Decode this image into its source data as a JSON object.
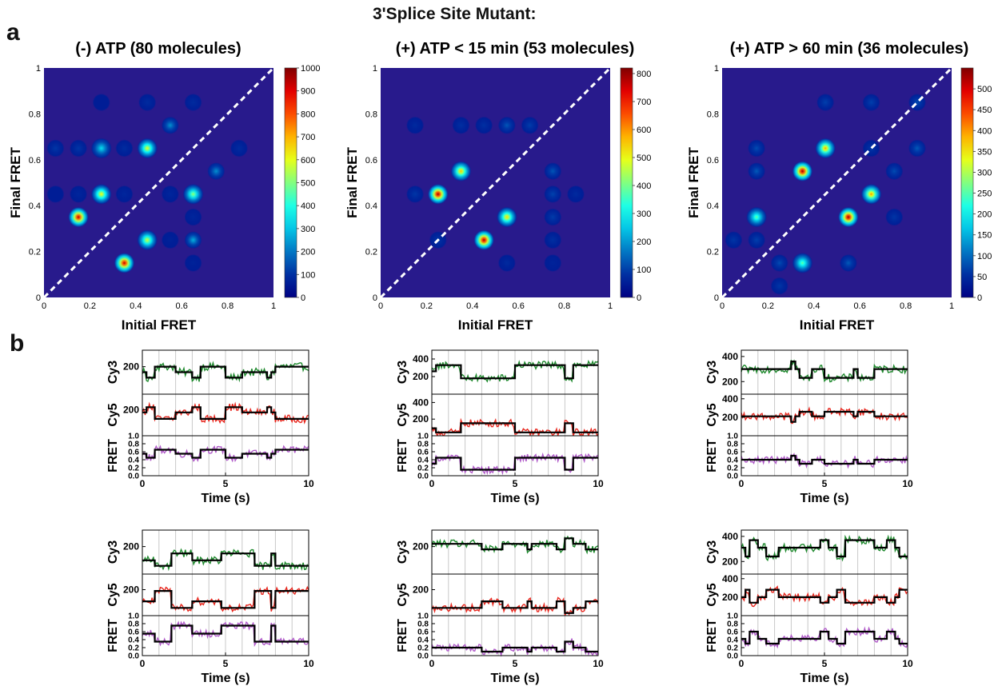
{
  "figure_title": "3'Splice Site  Mutant:",
  "panel_labels": {
    "a": "a",
    "b": "b"
  },
  "chart_data": [
    {
      "type": "heatmap",
      "title": "(-) ATP (80 molecules)",
      "xlabel": "Initial FRET",
      "ylabel": "Final FRET",
      "xlim": [
        0,
        1
      ],
      "ylim": [
        0,
        1
      ],
      "x_ticks": [
        "0",
        "0.2",
        "0.4",
        "0.6",
        "0.8",
        "1"
      ],
      "y_ticks": [
        "0",
        "0.2",
        "0.4",
        "0.6",
        "0.8",
        "1"
      ],
      "colorbar": {
        "min": 0,
        "max": 1000,
        "ticks": [
          "0",
          "100",
          "200",
          "300",
          "400",
          "500",
          "600",
          "700",
          "800",
          "900",
          "1000"
        ]
      },
      "diagonal_line": true,
      "peaks": [
        {
          "x": 0.15,
          "y": 0.35,
          "value": 950
        },
        {
          "x": 0.35,
          "y": 0.15,
          "value": 950
        },
        {
          "x": 0.25,
          "y": 0.45,
          "value": 620
        },
        {
          "x": 0.45,
          "y": 0.65,
          "value": 600
        },
        {
          "x": 0.45,
          "y": 0.25,
          "value": 580
        },
        {
          "x": 0.65,
          "y": 0.45,
          "value": 520
        },
        {
          "x": 0.25,
          "y": 0.65,
          "value": 330
        },
        {
          "x": 0.65,
          "y": 0.25,
          "value": 270
        },
        {
          "x": 0.55,
          "y": 0.75,
          "value": 230
        },
        {
          "x": 0.75,
          "y": 0.55,
          "value": 230
        },
        {
          "x": 0.05,
          "y": 0.65,
          "value": 110
        },
        {
          "x": 0.15,
          "y": 0.65,
          "value": 110
        },
        {
          "x": 0.35,
          "y": 0.65,
          "value": 90
        },
        {
          "x": 0.45,
          "y": 0.85,
          "value": 90
        },
        {
          "x": 0.65,
          "y": 0.85,
          "value": 90
        },
        {
          "x": 0.85,
          "y": 0.65,
          "value": 90
        },
        {
          "x": 0.35,
          "y": 0.45,
          "value": 80
        },
        {
          "x": 0.55,
          "y": 0.45,
          "value": 80
        },
        {
          "x": 0.15,
          "y": 0.45,
          "value": 80
        },
        {
          "x": 0.65,
          "y": 0.35,
          "value": 80
        },
        {
          "x": 0.65,
          "y": 0.15,
          "value": 70
        },
        {
          "x": 0.25,
          "y": 0.85,
          "value": 60
        },
        {
          "x": 0.55,
          "y": 0.25,
          "value": 70
        },
        {
          "x": 0.05,
          "y": 0.45,
          "value": 60
        }
      ]
    },
    {
      "type": "heatmap",
      "title": "(+) ATP < 15 min (53 molecules)",
      "xlabel": "Initial FRET",
      "ylabel": "Final FRET",
      "xlim": [
        0,
        1
      ],
      "ylim": [
        0,
        1
      ],
      "x_ticks": [
        "0",
        "0.2",
        "0.4",
        "0.6",
        "0.8",
        "1"
      ],
      "y_ticks": [
        "0",
        "0.2",
        "0.4",
        "0.6",
        "0.8",
        "1"
      ],
      "colorbar": {
        "min": 0,
        "max": 820,
        "ticks": [
          "0",
          "100",
          "200",
          "300",
          "400",
          "500",
          "600",
          "700",
          "800"
        ]
      },
      "diagonal_line": true,
      "peaks": [
        {
          "x": 0.25,
          "y": 0.45,
          "value": 800
        },
        {
          "x": 0.45,
          "y": 0.25,
          "value": 800
        },
        {
          "x": 0.35,
          "y": 0.55,
          "value": 560
        },
        {
          "x": 0.55,
          "y": 0.35,
          "value": 540
        },
        {
          "x": 0.55,
          "y": 0.75,
          "value": 130
        },
        {
          "x": 0.75,
          "y": 0.55,
          "value": 130
        },
        {
          "x": 0.75,
          "y": 0.45,
          "value": 110
        },
        {
          "x": 0.75,
          "y": 0.35,
          "value": 100
        },
        {
          "x": 0.65,
          "y": 0.75,
          "value": 100
        },
        {
          "x": 0.15,
          "y": 0.45,
          "value": 90
        },
        {
          "x": 0.25,
          "y": 0.25,
          "value": 90
        },
        {
          "x": 0.45,
          "y": 0.75,
          "value": 80
        },
        {
          "x": 0.35,
          "y": 0.75,
          "value": 80
        },
        {
          "x": 0.75,
          "y": 0.25,
          "value": 80
        },
        {
          "x": 0.15,
          "y": 0.75,
          "value": 70
        },
        {
          "x": 0.85,
          "y": 0.45,
          "value": 70
        },
        {
          "x": 0.55,
          "y": 0.15,
          "value": 70
        },
        {
          "x": 0.75,
          "y": 0.15,
          "value": 60
        }
      ]
    },
    {
      "type": "heatmap",
      "title": "(+) ATP > 60 min (36 molecules)",
      "xlabel": "Initial FRET",
      "ylabel": "Final FRET",
      "xlim": [
        0,
        1
      ],
      "ylim": [
        0,
        1
      ],
      "x_ticks": [
        "0",
        "0.2",
        "0.4",
        "0.6",
        "0.8",
        "1"
      ],
      "y_ticks": [
        "0",
        "0.2",
        "0.4",
        "0.6",
        "0.8",
        "1"
      ],
      "colorbar": {
        "min": 0,
        "max": 550,
        "ticks": [
          "0",
          "50",
          "100",
          "150",
          "200",
          "250",
          "300",
          "350",
          "400",
          "450",
          "500"
        ]
      },
      "diagonal_line": true,
      "peaks": [
        {
          "x": 0.35,
          "y": 0.55,
          "value": 540
        },
        {
          "x": 0.55,
          "y": 0.35,
          "value": 540
        },
        {
          "x": 0.45,
          "y": 0.65,
          "value": 390
        },
        {
          "x": 0.65,
          "y": 0.45,
          "value": 400
        },
        {
          "x": 0.15,
          "y": 0.35,
          "value": 260
        },
        {
          "x": 0.35,
          "y": 0.15,
          "value": 260
        },
        {
          "x": 0.15,
          "y": 0.55,
          "value": 90
        },
        {
          "x": 0.15,
          "y": 0.65,
          "value": 80
        },
        {
          "x": 0.85,
          "y": 0.65,
          "value": 90
        },
        {
          "x": 0.75,
          "y": 0.55,
          "value": 80
        },
        {
          "x": 0.55,
          "y": 0.15,
          "value": 90
        },
        {
          "x": 0.25,
          "y": 0.15,
          "value": 80
        },
        {
          "x": 0.45,
          "y": 0.85,
          "value": 70
        },
        {
          "x": 0.85,
          "y": 0.85,
          "value": 80
        },
        {
          "x": 0.65,
          "y": 0.85,
          "value": 70
        },
        {
          "x": 0.15,
          "y": 0.25,
          "value": 70
        },
        {
          "x": 0.05,
          "y": 0.25,
          "value": 60
        },
        {
          "x": 0.65,
          "y": 0.65,
          "value": 60
        },
        {
          "x": 0.25,
          "y": 0.05,
          "value": 60
        },
        {
          "x": 0.75,
          "y": 0.35,
          "value": 60
        }
      ]
    },
    {
      "type": "line",
      "panel": "b, row 1, column 1",
      "xlabel": "Time (s)",
      "xlim": [
        0,
        10
      ],
      "x_ticks": [
        "0",
        "5",
        "10"
      ],
      "tracks": [
        {
          "ylabel": "Cy3",
          "ylim": [
            0,
            320
          ],
          "y_ticks": [
            "200"
          ],
          "color": "#1f8a2e",
          "fit_levels": [
            120,
            160,
            200
          ]
        },
        {
          "ylabel": "Cy5",
          "ylim": [
            0,
            320
          ],
          "y_ticks": [
            "200"
          ],
          "color": "#e8281f",
          "fit_levels": [
            130,
            180,
            220
          ]
        },
        {
          "ylabel": "FRET",
          "ylim": [
            0,
            1
          ],
          "y_ticks": [
            "0.0",
            "0.2",
            "0.4",
            "0.6",
            "0.8",
            "1.0"
          ],
          "color": "#b05ac9",
          "fit_levels": [
            0.45,
            0.55,
            0.65
          ]
        }
      ]
    },
    {
      "type": "line",
      "panel": "b, row 1, column 2",
      "xlabel": "Time (s)",
      "xlim": [
        0,
        10
      ],
      "x_ticks": [
        "0",
        "5",
        "10"
      ],
      "tracks": [
        {
          "ylabel": "Cy3",
          "ylim": [
            0,
            500
          ],
          "y_ticks": [
            "200",
            "400"
          ],
          "color": "#1f8a2e",
          "fit_levels": [
            180,
            260,
            330
          ]
        },
        {
          "ylabel": "Cy5",
          "ylim": [
            0,
            500
          ],
          "y_ticks": [
            "200",
            "400"
          ],
          "color": "#e8281f",
          "fit_levels": [
            40,
            90,
            150
          ]
        },
        {
          "ylabel": "FRET",
          "ylim": [
            0,
            1
          ],
          "y_ticks": [
            "0.0",
            "0.2",
            "0.4",
            "0.6",
            "0.8",
            "1.0"
          ],
          "color": "#b05ac9",
          "fit_levels": [
            0.15,
            0.3,
            0.45
          ]
        }
      ]
    },
    {
      "type": "line",
      "panel": "b, row 1, column 3",
      "xlabel": "Time (s)",
      "xlim": [
        0,
        10
      ],
      "x_ticks": [
        "0",
        "5",
        "10"
      ],
      "tracks": [
        {
          "ylabel": "Cy3",
          "ylim": [
            100,
            450
          ],
          "y_ticks": [
            "200",
            "400"
          ],
          "color": "#1f8a2e",
          "fit_levels": [
            230,
            300,
            360
          ]
        },
        {
          "ylabel": "Cy5",
          "ylim": [
            0,
            450
          ],
          "y_ticks": [
            "200",
            "400"
          ],
          "color": "#e8281f",
          "fit_levels": [
            150,
            210,
            260
          ]
        },
        {
          "ylabel": "FRET",
          "ylim": [
            0,
            1
          ],
          "y_ticks": [
            "0.0",
            "0.2",
            "0.4",
            "0.6",
            "0.8",
            "1.0"
          ],
          "color": "#b05ac9",
          "fit_levels": [
            0.3,
            0.4,
            0.5
          ]
        }
      ]
    },
    {
      "type": "line",
      "panel": "b, row 2, column 1",
      "xlabel": "Time (s)",
      "xlim": [
        0,
        10
      ],
      "x_ticks": [
        "0",
        "5",
        "10"
      ],
      "tracks": [
        {
          "ylabel": "Cy3",
          "ylim": [
            0,
            320
          ],
          "y_ticks": [
            "200"
          ],
          "color": "#1f8a2e",
          "fit_levels": [
            60,
            100,
            150
          ]
        },
        {
          "ylabel": "Cy5",
          "ylim": [
            0,
            320
          ],
          "y_ticks": [
            "200"
          ],
          "color": "#e8281f",
          "fit_levels": [
            60,
            110,
            190
          ]
        },
        {
          "ylabel": "FRET",
          "ylim": [
            0,
            1
          ],
          "y_ticks": [
            "0.0",
            "0.2",
            "0.4",
            "0.6",
            "0.8",
            "1.0"
          ],
          "color": "#b05ac9",
          "fit_levels": [
            0.35,
            0.55,
            0.75
          ]
        }
      ]
    },
    {
      "type": "line",
      "panel": "b, row 2, column 2",
      "xlabel": "Time (s)",
      "xlim": [
        0,
        10
      ],
      "x_ticks": [
        "0",
        "5",
        "10"
      ],
      "tracks": [
        {
          "ylabel": "Cy3",
          "ylim": [
            0,
            320
          ],
          "y_ticks": [
            "200"
          ],
          "color": "#1f8a2e",
          "fit_levels": [
            180,
            220,
            260
          ]
        },
        {
          "ylabel": "Cy5",
          "ylim": [
            0,
            320
          ],
          "y_ticks": [
            "200"
          ],
          "color": "#e8281f",
          "fit_levels": [
            20,
            60,
            110
          ]
        },
        {
          "ylabel": "FRET",
          "ylim": [
            0,
            1
          ],
          "y_ticks": [
            "0.0",
            "0.2",
            "0.4",
            "0.6",
            "0.8",
            "1.0"
          ],
          "color": "#b05ac9",
          "fit_levels": [
            0.1,
            0.2,
            0.35
          ]
        }
      ]
    },
    {
      "type": "line",
      "panel": "b, row 2, column 3",
      "xlabel": "Time (s)",
      "xlim": [
        0,
        10
      ],
      "x_ticks": [
        "0",
        "5",
        "10"
      ],
      "tracks": [
        {
          "ylabel": "Cy3",
          "ylim": [
            100,
            450
          ],
          "y_ticks": [
            "200",
            "400"
          ],
          "color": "#1f8a2e",
          "fit_levels": [
            240,
            310,
            370
          ]
        },
        {
          "ylabel": "Cy5",
          "ylim": [
            0,
            450
          ],
          "y_ticks": [
            "200",
            "400"
          ],
          "color": "#e8281f",
          "fit_levels": [
            140,
            200,
            280
          ]
        },
        {
          "ylabel": "FRET",
          "ylim": [
            0,
            1
          ],
          "y_ticks": [
            "0.0",
            "0.2",
            "0.4",
            "0.6",
            "0.8",
            "1.0"
          ],
          "color": "#b05ac9",
          "fit_levels": [
            0.3,
            0.42,
            0.6
          ]
        }
      ]
    }
  ],
  "colors": {
    "heatmap_background": "#281a8c",
    "diagonal": "#ffffff",
    "fit_line": "#000000",
    "grid_line": "#c8c8c8"
  }
}
